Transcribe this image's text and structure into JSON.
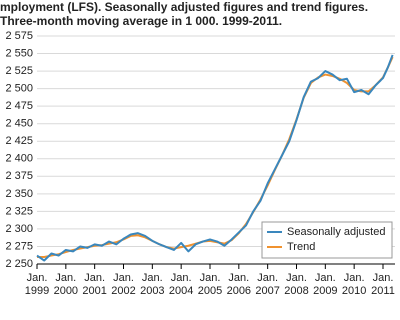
{
  "chart_data": {
    "type": "line",
    "title": "mployment (LFS). Seasonally adjusted figures and trend figures.",
    "subtitle": "Three-month moving average in 1 000. 1999-2011.",
    "x": [
      "1999-01",
      "1999-04",
      "1999-07",
      "1999-10",
      "2000-01",
      "2000-04",
      "2000-07",
      "2000-10",
      "2001-01",
      "2001-04",
      "2001-07",
      "2001-10",
      "2002-01",
      "2002-04",
      "2002-07",
      "2002-10",
      "2003-01",
      "2003-04",
      "2003-07",
      "2003-10",
      "2004-01",
      "2004-04",
      "2004-07",
      "2004-10",
      "2005-01",
      "2005-04",
      "2005-07",
      "2005-10",
      "2006-01",
      "2006-04",
      "2006-07",
      "2006-10",
      "2007-01",
      "2007-04",
      "2007-07",
      "2007-10",
      "2008-01",
      "2008-04",
      "2008-07",
      "2008-10",
      "2009-01",
      "2009-04",
      "2009-07",
      "2009-10",
      "2010-01",
      "2010-04",
      "2010-07",
      "2010-10",
      "2011-01",
      "2011-03",
      "2011-05"
    ],
    "series": [
      {
        "name": "Seasonally adjusted",
        "color": "#3a87bd",
        "values": [
          2262,
          2255,
          2265,
          2262,
          2270,
          2268,
          2275,
          2273,
          2278,
          2276,
          2282,
          2278,
          2286,
          2292,
          2294,
          2290,
          2283,
          2278,
          2274,
          2270,
          2280,
          2268,
          2278,
          2282,
          2285,
          2282,
          2276,
          2285,
          2295,
          2305,
          2325,
          2340,
          2365,
          2385,
          2405,
          2425,
          2455,
          2488,
          2510,
          2515,
          2525,
          2520,
          2512,
          2514,
          2495,
          2498,
          2492,
          2505,
          2515,
          2530,
          2548
        ]
      },
      {
        "name": "Trend",
        "color": "#f0922f",
        "values": [
          2260,
          2260,
          2262,
          2264,
          2267,
          2270,
          2272,
          2274,
          2276,
          2277,
          2279,
          2281,
          2285,
          2290,
          2291,
          2288,
          2283,
          2278,
          2274,
          2272,
          2274,
          2276,
          2279,
          2282,
          2283,
          2281,
          2279,
          2284,
          2294,
          2307,
          2324,
          2342,
          2362,
          2384,
          2405,
          2428,
          2456,
          2487,
          2508,
          2516,
          2520,
          2518,
          2514,
          2508,
          2498,
          2496,
          2496,
          2505,
          2516,
          2530,
          2545
        ]
      }
    ],
    "xlim": [
      "1999-01",
      "2011-06"
    ],
    "xticks": [
      {
        "value": "1999-01",
        "label": [
          "Jan.",
          "1999"
        ]
      },
      {
        "value": "2000-01",
        "label": [
          "Jan.",
          "2000"
        ]
      },
      {
        "value": "2001-01",
        "label": [
          "Jan.",
          "2001"
        ]
      },
      {
        "value": "2002-01",
        "label": [
          "Jan.",
          "2002"
        ]
      },
      {
        "value": "2003-01",
        "label": [
          "Jan.",
          "2003"
        ]
      },
      {
        "value": "2004-01",
        "label": [
          "Jan.",
          "2004"
        ]
      },
      {
        "value": "2005-01",
        "label": [
          "Jan.",
          "2005"
        ]
      },
      {
        "value": "2006-01",
        "label": [
          "Jan.",
          "2006"
        ]
      },
      {
        "value": "2007-01",
        "label": [
          "Jan.",
          "2007"
        ]
      },
      {
        "value": "2008-01",
        "label": [
          "Jan.",
          "2008"
        ]
      },
      {
        "value": "2009-01",
        "label": [
          "Jan.",
          "2009"
        ]
      },
      {
        "value": "2010-01",
        "label": [
          "Jan.",
          "2010"
        ]
      },
      {
        "value": "2011-01",
        "label": [
          "Jan.",
          "2011"
        ]
      }
    ],
    "ylim": [
      2250,
      2575
    ],
    "yticks": [
      {
        "value": 2250,
        "label": "2 250"
      },
      {
        "value": 2275,
        "label": "2 275"
      },
      {
        "value": 2300,
        "label": "2 300"
      },
      {
        "value": 2325,
        "label": "2 325"
      },
      {
        "value": 2350,
        "label": "2 350"
      },
      {
        "value": 2375,
        "label": "2 375"
      },
      {
        "value": 2400,
        "label": "2 400"
      },
      {
        "value": 2425,
        "label": "2 425"
      },
      {
        "value": 2450,
        "label": "2 450"
      },
      {
        "value": 2475,
        "label": "2 475"
      },
      {
        "value": 2500,
        "label": "2 500"
      },
      {
        "value": 2525,
        "label": "2 525"
      },
      {
        "value": 2550,
        "label": "2 550"
      },
      {
        "value": 2575,
        "label": "2 575"
      }
    ],
    "grid": true,
    "legend": "lower right"
  }
}
